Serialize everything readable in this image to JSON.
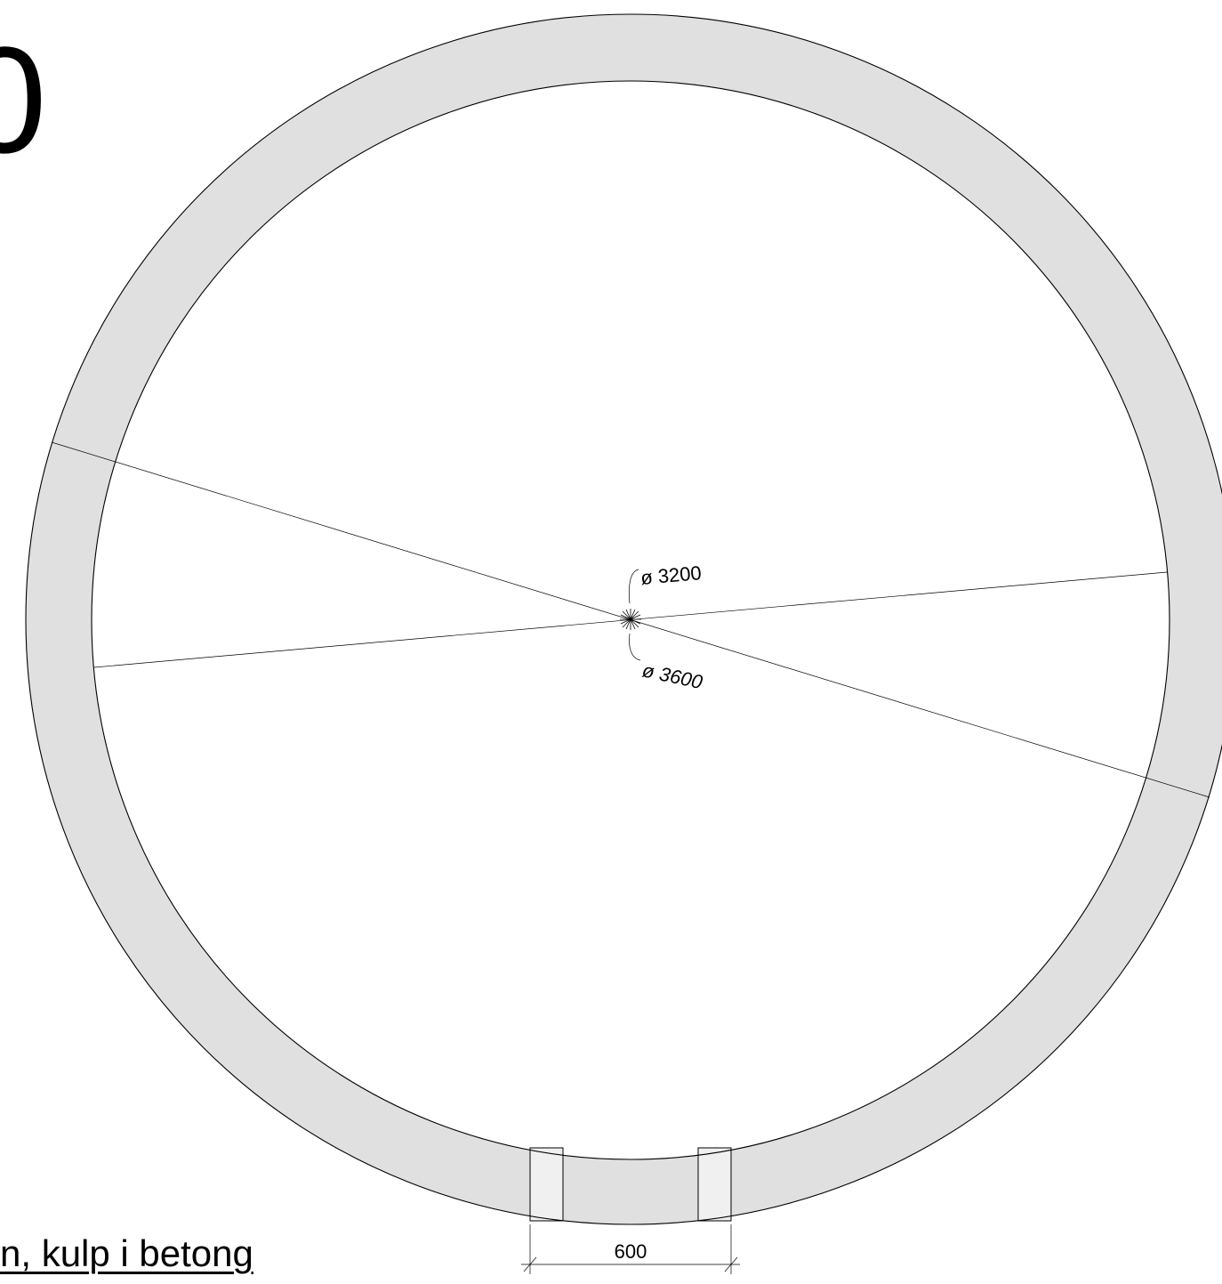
{
  "heading_fragment": "0",
  "caption": "n, kulp i betong",
  "dimensions": {
    "inner_diameter": "ø 3200",
    "outer_diameter": "ø 3600",
    "opening_width": "600"
  },
  "colors": {
    "ring_fill": "#e0e0e0",
    "opening_fill": "#f0f0f0",
    "line": "#000000",
    "background": "#ffffff"
  }
}
